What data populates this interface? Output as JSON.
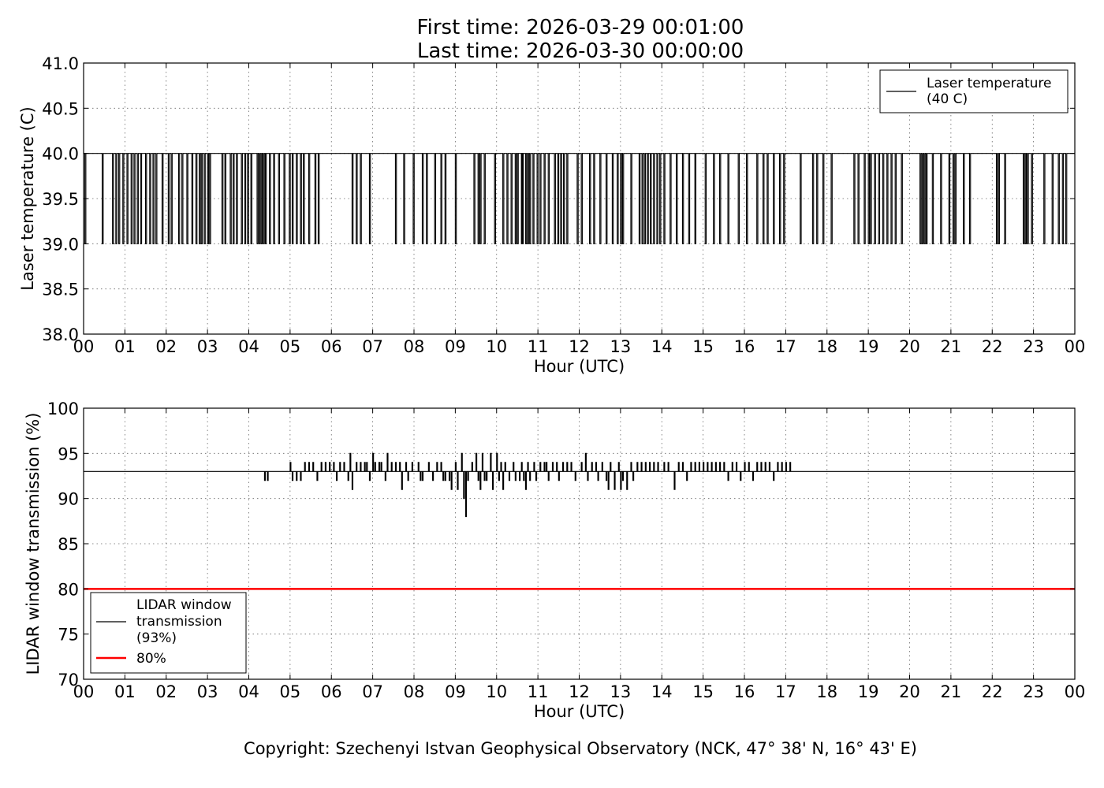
{
  "title_line1": "First time: 2026-03-29 00:01:00",
  "title_line2": "Last time: 2026-03-30 00:00:00",
  "footer": "Copyright: Szechenyi Istvan Geophysical Observatory (NCK, 47° 38' N, 16° 43' E)",
  "chart_data": [
    {
      "type": "line",
      "title": "First time: 2026-03-29 00:01:00 / Last time: 2026-03-30 00:00:00",
      "xlabel": "Hour (UTC)",
      "ylabel": "Laser temperature (C)",
      "xlim": [
        0,
        24
      ],
      "ylim": [
        38.0,
        41.0
      ],
      "xticks": [
        "00",
        "01",
        "02",
        "03",
        "04",
        "05",
        "06",
        "07",
        "08",
        "09",
        "10",
        "11",
        "12",
        "13",
        "14",
        "15",
        "16",
        "17",
        "18",
        "19",
        "20",
        "21",
        "22",
        "23",
        "00"
      ],
      "yticks": [
        "38.0",
        "38.5",
        "39.0",
        "39.5",
        "40.0",
        "40.5",
        "41.0"
      ],
      "grid": true,
      "legend_position": "top-right",
      "series": [
        {
          "name": "Laser temperature\n(40 C)",
          "color": "#000000",
          "baseline": 40.0,
          "dip_value": 39.0,
          "dips_hours": [
            0.03,
            0.45,
            0.7,
            0.78,
            0.85,
            0.95,
            1.05,
            1.15,
            1.22,
            1.3,
            1.38,
            1.5,
            1.6,
            1.68,
            1.75,
            1.9,
            2.05,
            2.12,
            2.3,
            2.38,
            2.5,
            2.62,
            2.72,
            2.8,
            2.85,
            2.92,
            3.0,
            3.05,
            3.35,
            3.42,
            3.55,
            3.62,
            3.7,
            3.82,
            3.9,
            3.97,
            4.05,
            4.2,
            4.25,
            4.3,
            4.35,
            4.4,
            4.5,
            4.6,
            4.72,
            4.85,
            4.98,
            5.05,
            5.15,
            5.25,
            5.32,
            5.45,
            5.6,
            5.68,
            6.5,
            6.6,
            6.7,
            6.92,
            7.55,
            7.75,
            7.98,
            8.2,
            8.3,
            8.5,
            8.65,
            8.75,
            9.0,
            9.45,
            9.55,
            9.6,
            9.7,
            9.95,
            10.15,
            10.25,
            10.35,
            10.45,
            10.5,
            10.6,
            10.62,
            10.7,
            10.75,
            10.8,
            10.88,
            10.98,
            11.05,
            11.15,
            11.25,
            11.4,
            11.48,
            11.55,
            11.62,
            11.7,
            11.95,
            12.05,
            12.25,
            12.35,
            12.5,
            12.65,
            12.8,
            12.92,
            13.0,
            13.05,
            13.25,
            13.45,
            13.52,
            13.58,
            13.65,
            13.72,
            13.8,
            13.88,
            13.95,
            14.05,
            14.2,
            14.35,
            14.5,
            14.65,
            14.8,
            15.05,
            15.25,
            15.4,
            15.6,
            15.85,
            16.05,
            16.3,
            16.45,
            16.55,
            16.7,
            16.85,
            16.95,
            17.35,
            17.65,
            17.75,
            17.9,
            18.1,
            18.65,
            18.75,
            18.9,
            19.0,
            19.05,
            19.15,
            19.25,
            19.35,
            19.45,
            19.55,
            19.65,
            19.8,
            20.25,
            20.3,
            20.35,
            20.4,
            20.55,
            20.75,
            20.95,
            21.05,
            21.1,
            21.3,
            21.45,
            22.1,
            22.15,
            22.3,
            22.75,
            22.8,
            22.85,
            22.95,
            23.25,
            23.45,
            23.6,
            23.7,
            23.78
          ]
        }
      ]
    },
    {
      "type": "line",
      "xlabel": "Hour (UTC)",
      "ylabel": "LIDAR window transmission (%)",
      "xlim": [
        0,
        24
      ],
      "ylim": [
        70,
        100
      ],
      "xticks": [
        "00",
        "01",
        "02",
        "03",
        "04",
        "05",
        "06",
        "07",
        "08",
        "09",
        "10",
        "11",
        "12",
        "13",
        "14",
        "15",
        "16",
        "17",
        "18",
        "19",
        "20",
        "21",
        "22",
        "23",
        "00"
      ],
      "yticks": [
        "70",
        "75",
        "80",
        "85",
        "90",
        "95",
        "100"
      ],
      "grid": true,
      "legend_position": "bottom-left",
      "series": [
        {
          "name": "LIDAR window\ntransmission\n(93%)",
          "color": "#000000",
          "baseline": 93,
          "active_range_hours": [
            4.35,
            17.15
          ],
          "min": 88,
          "max": 95,
          "min_at_hour": 9.25,
          "deviations": [
            [
              4.38,
              92
            ],
            [
              4.45,
              92
            ],
            [
              5.0,
              94
            ],
            [
              5.05,
              92
            ],
            [
              5.15,
              92
            ],
            [
              5.25,
              92
            ],
            [
              5.35,
              94
            ],
            [
              5.45,
              94
            ],
            [
              5.55,
              94
            ],
            [
              5.65,
              92
            ],
            [
              5.75,
              94
            ],
            [
              5.85,
              94
            ],
            [
              5.95,
              94
            ],
            [
              6.05,
              94
            ],
            [
              6.12,
              92
            ],
            [
              6.2,
              94
            ],
            [
              6.3,
              94
            ],
            [
              6.4,
              92
            ],
            [
              6.45,
              95
            ],
            [
              6.5,
              91
            ],
            [
              6.6,
              94
            ],
            [
              6.7,
              94
            ],
            [
              6.8,
              94
            ],
            [
              6.85,
              94
            ],
            [
              6.92,
              92
            ],
            [
              7.0,
              95
            ],
            [
              7.05,
              94
            ],
            [
              7.15,
              94
            ],
            [
              7.2,
              94
            ],
            [
              7.3,
              92
            ],
            [
              7.35,
              95
            ],
            [
              7.45,
              94
            ],
            [
              7.55,
              94
            ],
            [
              7.65,
              94
            ],
            [
              7.7,
              91
            ],
            [
              7.8,
              94
            ],
            [
              7.85,
              92
            ],
            [
              7.95,
              94
            ],
            [
              8.1,
              94
            ],
            [
              8.15,
              92
            ],
            [
              8.2,
              92
            ],
            [
              8.35,
              94
            ],
            [
              8.45,
              92
            ],
            [
              8.55,
              94
            ],
            [
              8.65,
              94
            ],
            [
              8.7,
              92
            ],
            [
              8.75,
              92
            ],
            [
              8.85,
              92
            ],
            [
              8.9,
              91
            ],
            [
              9.0,
              94
            ],
            [
              9.05,
              91
            ],
            [
              9.15,
              95
            ],
            [
              9.2,
              90
            ],
            [
              9.25,
              88
            ],
            [
              9.3,
              92
            ],
            [
              9.4,
              94
            ],
            [
              9.5,
              95
            ],
            [
              9.55,
              92
            ],
            [
              9.6,
              91
            ],
            [
              9.65,
              95
            ],
            [
              9.7,
              92
            ],
            [
              9.75,
              92
            ],
            [
              9.85,
              95
            ],
            [
              9.9,
              91
            ],
            [
              10.0,
              95
            ],
            [
              10.05,
              92
            ],
            [
              10.1,
              94
            ],
            [
              10.15,
              91
            ],
            [
              10.2,
              94
            ],
            [
              10.3,
              92
            ],
            [
              10.4,
              94
            ],
            [
              10.45,
              92
            ],
            [
              10.55,
              92
            ],
            [
              10.6,
              94
            ],
            [
              10.65,
              92
            ],
            [
              10.7,
              91
            ],
            [
              10.75,
              94
            ],
            [
              10.8,
              92
            ],
            [
              10.9,
              94
            ],
            [
              10.95,
              92
            ],
            [
              11.05,
              94
            ],
            [
              11.15,
              94
            ],
            [
              11.2,
              94
            ],
            [
              11.25,
              92
            ],
            [
              11.35,
              94
            ],
            [
              11.45,
              94
            ],
            [
              11.5,
              92
            ],
            [
              11.6,
              94
            ],
            [
              11.7,
              94
            ],
            [
              11.8,
              94
            ],
            [
              11.9,
              92
            ],
            [
              12.05,
              94
            ],
            [
              12.15,
              95
            ],
            [
              12.2,
              92
            ],
            [
              12.3,
              94
            ],
            [
              12.4,
              94
            ],
            [
              12.45,
              92
            ],
            [
              12.55,
              94
            ],
            [
              12.65,
              92
            ],
            [
              12.7,
              91
            ],
            [
              12.75,
              94
            ],
            [
              12.85,
              91
            ],
            [
              12.95,
              94
            ],
            [
              13.0,
              91
            ],
            [
              13.05,
              92
            ],
            [
              13.15,
              91
            ],
            [
              13.25,
              94
            ],
            [
              13.3,
              92
            ],
            [
              13.4,
              94
            ],
            [
              13.5,
              94
            ],
            [
              13.6,
              94
            ],
            [
              13.7,
              94
            ],
            [
              13.8,
              94
            ],
            [
              13.9,
              94
            ],
            [
              14.05,
              94
            ],
            [
              14.15,
              94
            ],
            [
              14.3,
              91
            ],
            [
              14.4,
              94
            ],
            [
              14.5,
              94
            ],
            [
              14.6,
              92
            ],
            [
              14.7,
              94
            ],
            [
              14.8,
              94
            ],
            [
              14.9,
              94
            ],
            [
              15.0,
              94
            ],
            [
              15.1,
              94
            ],
            [
              15.2,
              94
            ],
            [
              15.3,
              94
            ],
            [
              15.4,
              94
            ],
            [
              15.5,
              94
            ],
            [
              15.6,
              92
            ],
            [
              15.7,
              94
            ],
            [
              15.8,
              94
            ],
            [
              15.9,
              92
            ],
            [
              16.0,
              94
            ],
            [
              16.1,
              94
            ],
            [
              16.2,
              92
            ],
            [
              16.3,
              94
            ],
            [
              16.4,
              94
            ],
            [
              16.5,
              94
            ],
            [
              16.6,
              94
            ],
            [
              16.7,
              92
            ],
            [
              16.8,
              94
            ],
            [
              16.9,
              94
            ],
            [
              17.0,
              94
            ],
            [
              17.1,
              94
            ]
          ]
        },
        {
          "name": "80%",
          "color": "#ff0000",
          "constant": 80
        }
      ]
    }
  ]
}
